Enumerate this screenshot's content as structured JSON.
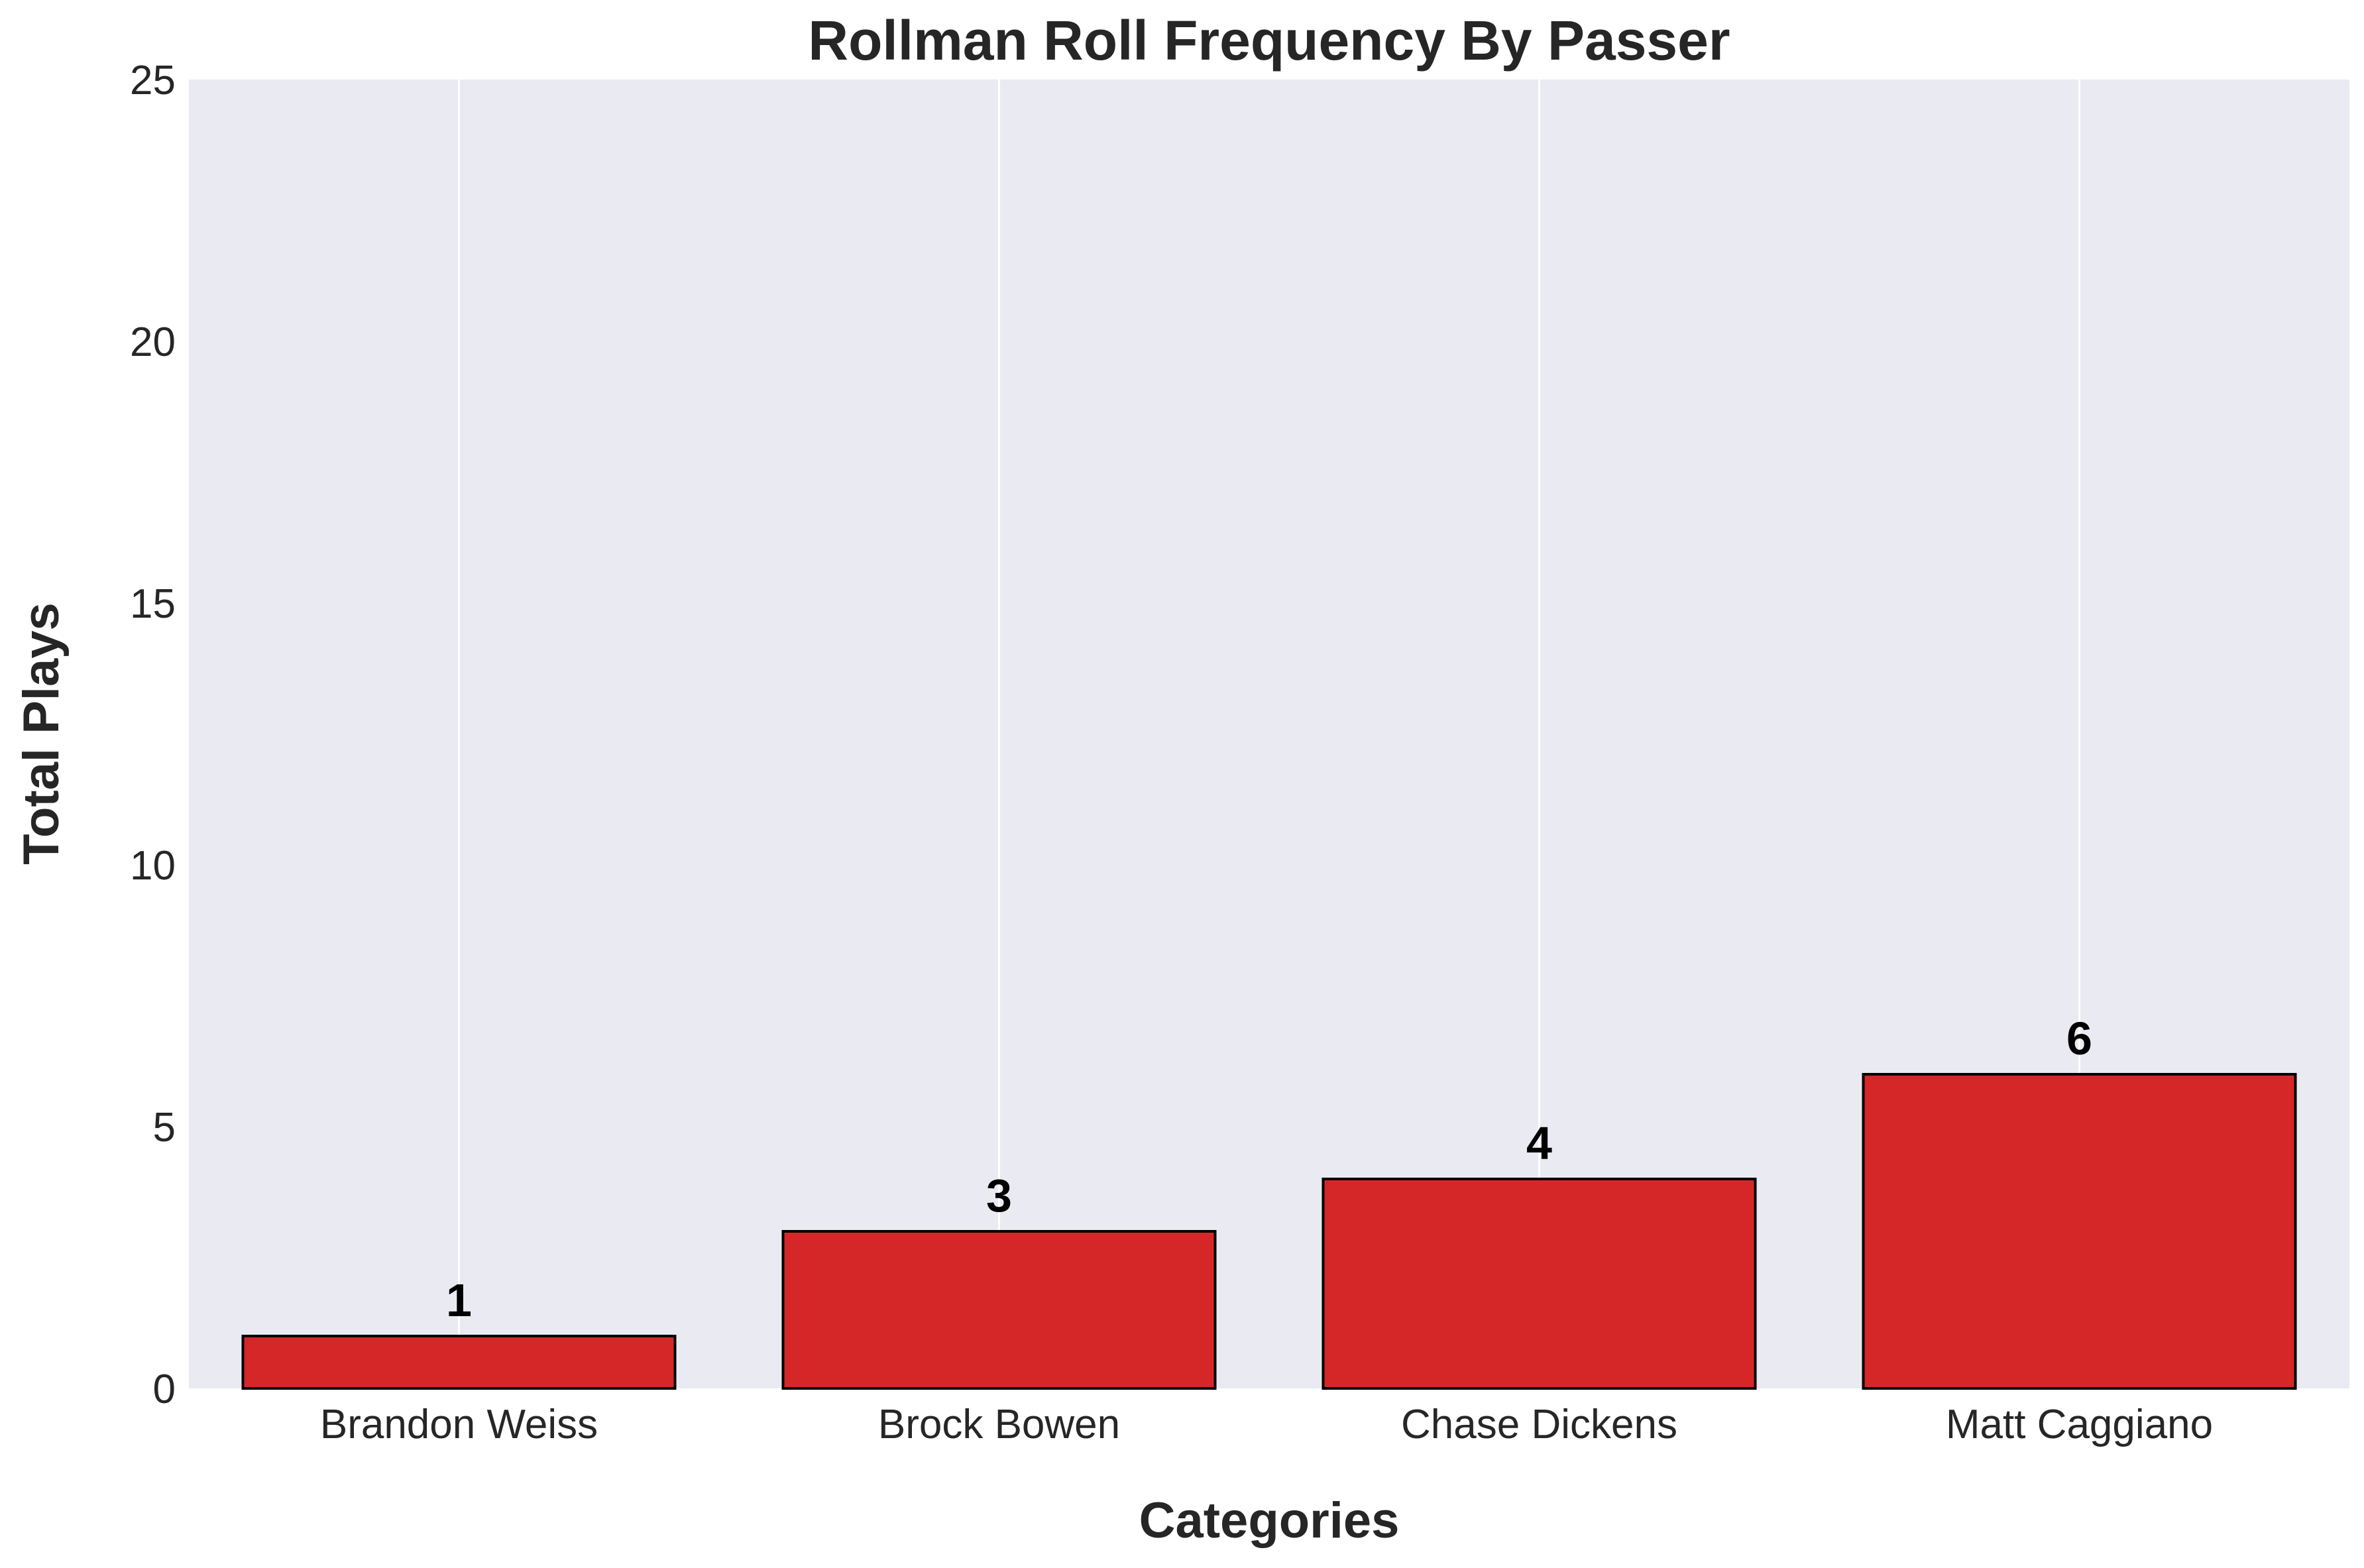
{
  "chart_data": {
    "type": "bar",
    "title": "Rollman Roll Frequency By Passer",
    "xlabel": "Categories",
    "ylabel": "Total Plays",
    "categories": [
      "Brandon Weiss",
      "Brock Bowen",
      "Chase Dickens",
      "Matt Caggiano"
    ],
    "values": [
      1,
      3,
      4,
      6
    ],
    "data_labels": [
      "1",
      "3",
      "4",
      "6"
    ],
    "ylim": [
      0,
      25
    ],
    "yticks": [
      0,
      5,
      10,
      15,
      20,
      25
    ],
    "ytick_labels": [
      "0",
      "5",
      "10",
      "15",
      "20",
      "25"
    ],
    "grid": "vertical lines only",
    "legend": "none",
    "colors": {
      "bar_fill": "#d62728",
      "bar_edge": "#000000",
      "plot_background": "#eaeaf2",
      "grid": "#ffffff"
    }
  }
}
